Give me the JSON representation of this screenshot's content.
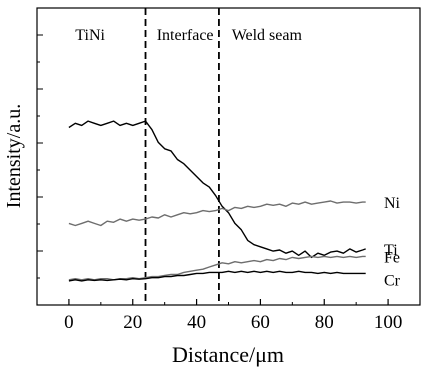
{
  "chart_data": {
    "type": "line",
    "title": "",
    "xlabel": "Distance/μm",
    "ylabel": "Intensity/a.u.",
    "xlim": [
      -10,
      110
    ],
    "ylim": [
      0,
      1
    ],
    "x_ticks": [
      0,
      20,
      40,
      60,
      80,
      100
    ],
    "x_tick_labels": [
      "0",
      "20",
      "40",
      "60",
      "80",
      "100"
    ],
    "y_tick_labels_shown": false,
    "grid": false,
    "legend": "none (series labelled at right end of lines)",
    "region_boundaries": [
      24,
      47
    ],
    "region_labels": [
      {
        "text": "TiNi",
        "x": 2
      },
      {
        "text": "Interface",
        "x": 27.5
      },
      {
        "text": "Weld seam",
        "x": 51
      }
    ],
    "series": [
      {
        "name": "Ti",
        "color": "#000000",
        "x": [
          0,
          2,
          4,
          6,
          8,
          10,
          12,
          14,
          16,
          18,
          20,
          22,
          24,
          26,
          28,
          30,
          32,
          34,
          36,
          38,
          40,
          42,
          44,
          46,
          48,
          50,
          52,
          54,
          56,
          58,
          60,
          62,
          64,
          66,
          68,
          70,
          72,
          74,
          76,
          78,
          80,
          82,
          84,
          86,
          88,
          90,
          92,
          93
        ],
        "y": [
          0.73,
          0.75,
          0.74,
          0.76,
          0.75,
          0.74,
          0.75,
          0.76,
          0.74,
          0.75,
          0.74,
          0.75,
          0.76,
          0.72,
          0.66,
          0.63,
          0.62,
          0.58,
          0.56,
          0.53,
          0.5,
          0.47,
          0.45,
          0.41,
          0.36,
          0.33,
          0.28,
          0.25,
          0.2,
          0.18,
          0.17,
          0.16,
          0.15,
          0.155,
          0.14,
          0.15,
          0.13,
          0.15,
          0.12,
          0.14,
          0.13,
          0.145,
          0.15,
          0.14,
          0.16,
          0.145,
          0.155,
          0.16
        ]
      },
      {
        "name": "Ni",
        "color": "#6e6e6e",
        "x": [
          0,
          2,
          4,
          6,
          8,
          10,
          12,
          14,
          16,
          18,
          20,
          22,
          24,
          26,
          28,
          30,
          32,
          34,
          36,
          38,
          40,
          42,
          44,
          46,
          48,
          50,
          52,
          54,
          56,
          58,
          60,
          62,
          64,
          66,
          68,
          70,
          72,
          74,
          76,
          78,
          80,
          82,
          84,
          86,
          88,
          90,
          92,
          93
        ],
        "y": [
          0.28,
          0.27,
          0.28,
          0.29,
          0.28,
          0.27,
          0.29,
          0.285,
          0.3,
          0.29,
          0.3,
          0.295,
          0.3,
          0.31,
          0.305,
          0.32,
          0.31,
          0.32,
          0.33,
          0.325,
          0.33,
          0.34,
          0.335,
          0.34,
          0.35,
          0.34,
          0.355,
          0.35,
          0.36,
          0.355,
          0.36,
          0.37,
          0.365,
          0.37,
          0.36,
          0.375,
          0.37,
          0.38,
          0.37,
          0.375,
          0.38,
          0.385,
          0.375,
          0.38,
          0.38,
          0.375,
          0.38,
          0.38
        ]
      },
      {
        "name": "Fe",
        "color": "#6e6e6e",
        "x": [
          0,
          2,
          4,
          6,
          8,
          10,
          12,
          14,
          16,
          18,
          20,
          22,
          24,
          26,
          28,
          30,
          32,
          34,
          36,
          38,
          40,
          42,
          44,
          46,
          48,
          50,
          52,
          54,
          56,
          58,
          60,
          62,
          64,
          66,
          68,
          70,
          72,
          74,
          76,
          78,
          80,
          82,
          84,
          86,
          88,
          90,
          92,
          93
        ],
        "y": [
          0.015,
          0.02,
          0.015,
          0.02,
          0.015,
          0.02,
          0.02,
          0.015,
          0.02,
          0.02,
          0.025,
          0.02,
          0.025,
          0.03,
          0.03,
          0.035,
          0.04,
          0.04,
          0.05,
          0.055,
          0.06,
          0.065,
          0.075,
          0.085,
          0.095,
          0.09,
          0.1,
          0.095,
          0.1,
          0.105,
          0.1,
          0.11,
          0.105,
          0.115,
          0.11,
          0.12,
          0.115,
          0.12,
          0.125,
          0.12,
          0.125,
          0.12,
          0.125,
          0.12,
          0.125,
          0.12,
          0.125,
          0.125
        ]
      },
      {
        "name": "Cr",
        "color": "#000000",
        "x": [
          0,
          2,
          4,
          6,
          8,
          10,
          12,
          14,
          16,
          18,
          20,
          22,
          24,
          26,
          28,
          30,
          32,
          34,
          36,
          38,
          40,
          42,
          44,
          46,
          48,
          50,
          52,
          54,
          56,
          58,
          60,
          62,
          64,
          66,
          68,
          70,
          72,
          74,
          76,
          78,
          80,
          82,
          84,
          86,
          88,
          90,
          92,
          93
        ],
        "y": [
          0.01,
          0.015,
          0.01,
          0.015,
          0.012,
          0.015,
          0.012,
          0.015,
          0.018,
          0.015,
          0.02,
          0.018,
          0.02,
          0.025,
          0.025,
          0.03,
          0.03,
          0.035,
          0.035,
          0.04,
          0.045,
          0.045,
          0.05,
          0.05,
          0.05,
          0.055,
          0.05,
          0.055,
          0.05,
          0.055,
          0.05,
          0.055,
          0.05,
          0.055,
          0.05,
          0.05,
          0.055,
          0.05,
          0.05,
          0.045,
          0.05,
          0.045,
          0.05,
          0.045,
          0.045,
          0.045,
          0.045,
          0.045
        ]
      }
    ]
  }
}
